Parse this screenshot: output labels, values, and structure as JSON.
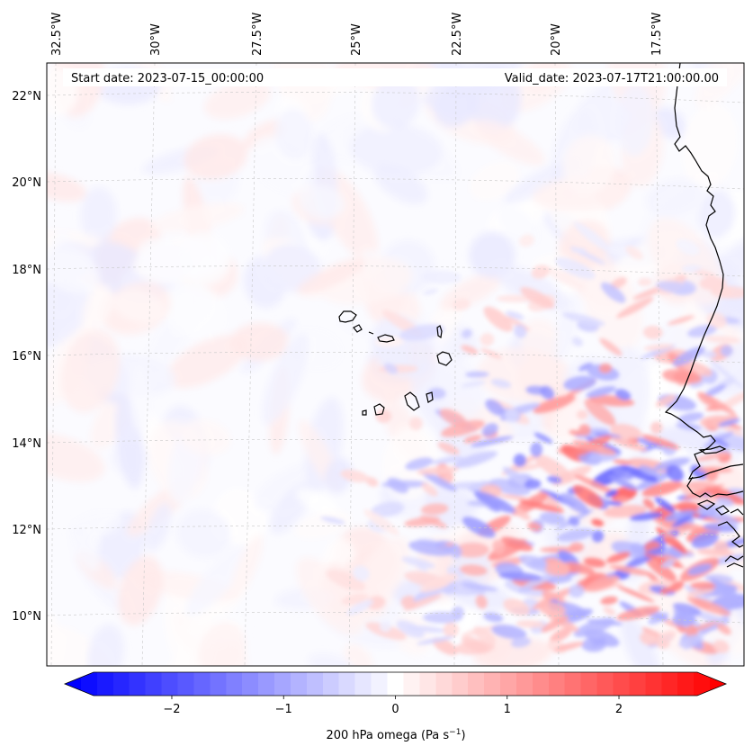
{
  "header": {
    "start_label": "Start date: 2023-07-15_00:00:00",
    "valid_label": "Valid_date: 2023-07-17T21:00:00.00"
  },
  "map": {
    "projection": "lambert-conformal",
    "longitude_labels": [
      "32.5°W",
      "30°W",
      "27.5°W",
      "25°W",
      "22.5°W",
      "20°W",
      "17.5°W"
    ],
    "latitude_labels": [
      "22°N",
      "20°N",
      "18°N",
      "16°N",
      "14°N",
      "12°N",
      "10°N"
    ],
    "extent": {
      "lon": [
        -33,
        -15.5
      ],
      "lat": [
        9,
        22.8
      ]
    },
    "coastline_color": "#000000",
    "gridline_color": "#c8c8c8"
  },
  "colorbar": {
    "label": "200 hPa omega (Pa s",
    "label_sup": "−1",
    "label_close": ")",
    "vmin": -2.7,
    "vmax": 2.7,
    "tick_values": [
      -2,
      -1,
      0,
      1,
      2
    ],
    "tick_labels": [
      "−2",
      "−1",
      "0",
      "1",
      "2"
    ],
    "colormap": "bwr",
    "color_min": "#0000ff",
    "color_mid": "#ffffff",
    "color_max": "#ff0000"
  },
  "chart_data": {
    "type": "heatmap",
    "variable": "200 hPa omega",
    "units": "Pa s^-1",
    "vmin": -2.7,
    "vmax": 2.7,
    "description_of_field": "weak mostly-neutral omega over open ocean in the west; strong alternating positive/negative bands concentrated east of ~22°W and south of ~16°N near the West African coast"
  }
}
